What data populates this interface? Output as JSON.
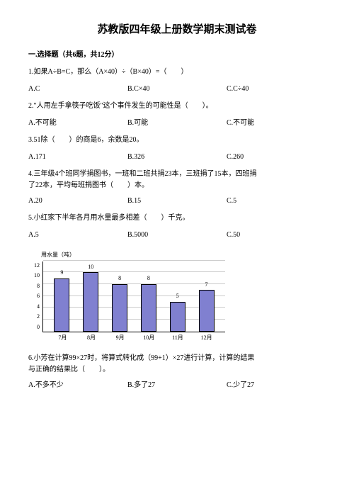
{
  "title": "苏教版四年级上册数学期末测试卷",
  "section": "一.选择题（共6题，共12分）",
  "q1": {
    "text": "1.如果A÷B=C，那么（A×40）÷（B×40）=（　　）",
    "a": "A.C",
    "b": "B.C×40",
    "c": "C.C÷40"
  },
  "q2": {
    "text": "2.\"人用左手拿筷子吃饭\"这个事件发生的可能性是（　　）。",
    "a": "A.不可能",
    "b": "B.可能",
    "c": "C.不可能"
  },
  "q3": {
    "text": "3.51除（　　）的商是6，余数是20。",
    "a": "A.171",
    "b": "B.326",
    "c": "C.260"
  },
  "q4": {
    "text1": "4.三年级4个班同学捐图书，一班和二班共捐23本，三班捐了15本，四班捐",
    "text2": "了22本，平均每班捐图书（　　）本。",
    "a": "A.20",
    "b": "B.15",
    "c": "C.5"
  },
  "q5": {
    "text": "5.小红家下半年各月用水量最多相差（　　）千克。",
    "a": "A.5",
    "b": "B.5000",
    "c": "C.50"
  },
  "chart": {
    "ylabel": "用水量（吨）",
    "ymax": 12,
    "ytick_step": 2,
    "yticks": [
      "12",
      "10",
      "8",
      "6",
      "4",
      "2",
      "0"
    ],
    "background_color": "#ffffff",
    "grid_color": "#cccccc",
    "bar_color": "#8080d0",
    "bar_border": "#000000",
    "bars": [
      {
        "label": "7月",
        "value": 9
      },
      {
        "label": "8月",
        "value": 10
      },
      {
        "label": "9月",
        "value": 8
      },
      {
        "label": "10月",
        "value": 8
      },
      {
        "label": "11月",
        "value": 5
      },
      {
        "label": "12月",
        "value": 7
      }
    ]
  },
  "q6": {
    "text1": "6.小芳在计算99×27时，将算式转化成（99+1）×27进行计算，计算的结果",
    "text2": "与正确的结果比（　　）。",
    "a": "A.不多不少",
    "b": "B.多了27",
    "c": "C.少了27"
  }
}
